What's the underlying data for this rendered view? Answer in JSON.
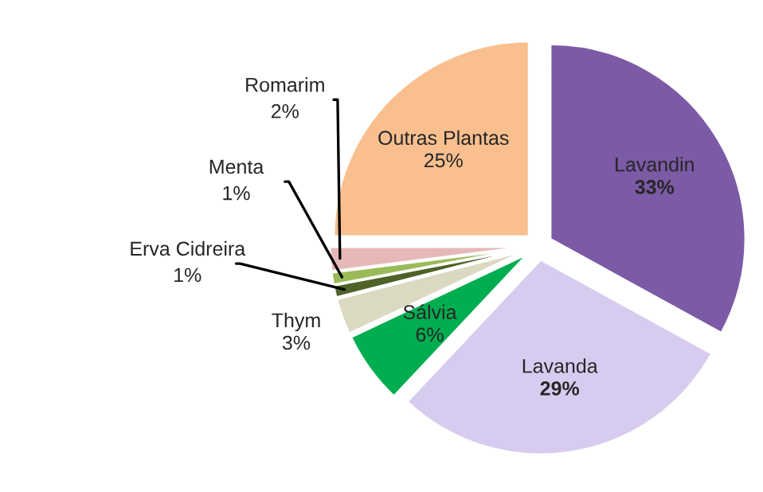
{
  "chart_data": {
    "type": "pie",
    "categories": [
      "Lavandin",
      "Lavanda",
      "Sálvia",
      "Thym",
      "Erva Cidreira",
      "Menta",
      "Romarim",
      "Outras Plantas"
    ],
    "values": [
      33,
      29,
      6,
      3,
      1,
      1,
      2,
      25
    ],
    "colors": [
      "#7b5aa6",
      "#d7ccef",
      "#00ad4f",
      "#dcd9c3",
      "#4f6228",
      "#9bbb59",
      "#e6b9b8",
      "#f9bf8f"
    ],
    "value_labels": [
      "33%",
      "29%",
      "6%",
      "3%",
      "1%",
      "1%",
      "2%",
      "25%"
    ]
  }
}
